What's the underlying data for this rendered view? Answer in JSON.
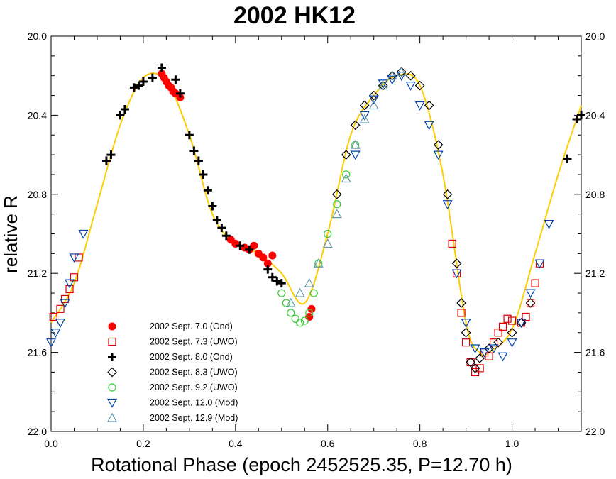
{
  "chart_data": {
    "type": "scatter",
    "title": "2002 HK12",
    "xlabel": "Rotational Phase (epoch 2452525.35, P=12.70 h)",
    "ylabel": "relative R",
    "xlim": [
      0.0,
      1.15
    ],
    "ylim": [
      20.0,
      22.0
    ],
    "y_inverted": true,
    "x_ticks": [
      "0.0",
      "0.2",
      "0.4",
      "0.6",
      "0.8",
      "1.0"
    ],
    "x_tick_values": [
      0.0,
      0.2,
      0.4,
      0.6,
      0.8,
      1.0
    ],
    "y_ticks": [
      "20.0",
      "20.4",
      "20.8",
      "21.2",
      "21.6",
      "22.0"
    ],
    "y_tick_values": [
      20.0,
      20.4,
      20.8,
      21.2,
      21.6,
      22.0
    ],
    "grid": false,
    "legend_position": "bottom-left",
    "fit_curve": {
      "color": "#ffcc00",
      "x": [
        0.0,
        0.05,
        0.1,
        0.15,
        0.2,
        0.25,
        0.3,
        0.35,
        0.4,
        0.45,
        0.5,
        0.55,
        0.6,
        0.65,
        0.7,
        0.75,
        0.8,
        0.85,
        0.9,
        0.93,
        0.95,
        1.0,
        1.05,
        1.1,
        1.15
      ],
      "y": [
        21.45,
        21.25,
        20.85,
        20.45,
        20.21,
        20.23,
        20.5,
        20.9,
        21.05,
        21.1,
        21.2,
        21.35,
        21.0,
        20.5,
        20.3,
        20.2,
        20.25,
        20.7,
        21.45,
        21.6,
        21.6,
        21.48,
        21.1,
        20.7,
        20.35
      ]
    },
    "series": [
      {
        "name": "2002 Sept. 7.0 (Ond)",
        "marker": "filled-circle",
        "color": "#ff0000",
        "points": [
          [
            0.24,
            20.19
          ],
          [
            0.245,
            20.21
          ],
          [
            0.25,
            20.23
          ],
          [
            0.255,
            20.25
          ],
          [
            0.26,
            20.26
          ],
          [
            0.265,
            20.28
          ],
          [
            0.27,
            20.29
          ],
          [
            0.28,
            20.31
          ],
          [
            0.39,
            21.03
          ],
          [
            0.4,
            21.05
          ],
          [
            0.42,
            21.07
          ],
          [
            0.43,
            21.08
          ],
          [
            0.44,
            21.06
          ],
          [
            0.45,
            21.1
          ],
          [
            0.46,
            21.12
          ],
          [
            0.47,
            21.15
          ],
          [
            0.48,
            21.11
          ],
          [
            0.56,
            21.42
          ],
          [
            0.565,
            21.38
          ]
        ]
      },
      {
        "name": "2002 Sept. 7.3 (UWO)",
        "marker": "open-square",
        "color": "#dd0000",
        "points": [
          [
            0.005,
            21.42
          ],
          [
            0.02,
            21.38
          ],
          [
            0.03,
            21.33
          ],
          [
            0.04,
            21.28
          ],
          [
            0.05,
            21.22
          ],
          [
            0.06,
            21.12
          ],
          [
            0.87,
            21.05
          ],
          [
            0.88,
            21.2
          ],
          [
            0.89,
            21.4
          ],
          [
            0.9,
            21.55
          ],
          [
            0.91,
            21.65
          ],
          [
            0.92,
            21.7
          ],
          [
            0.93,
            21.68
          ],
          [
            0.94,
            21.6
          ],
          [
            0.95,
            21.62
          ],
          [
            0.96,
            21.55
          ],
          [
            0.97,
            21.5
          ],
          [
            0.98,
            21.47
          ],
          [
            0.99,
            21.43
          ],
          [
            1.0,
            21.44
          ],
          [
            1.02,
            21.45
          ],
          [
            1.03,
            21.42
          ],
          [
            1.04,
            21.35
          ],
          [
            1.05,
            21.25
          ],
          [
            1.06,
            21.15
          ]
        ]
      },
      {
        "name": "2002 Sept. 8.0 (Ond)",
        "marker": "plus",
        "color": "#000000",
        "points": [
          [
            0.12,
            20.63
          ],
          [
            0.13,
            20.6
          ],
          [
            0.15,
            20.4
          ],
          [
            0.16,
            20.37
          ],
          [
            0.18,
            20.26
          ],
          [
            0.19,
            20.25
          ],
          [
            0.2,
            20.23
          ],
          [
            0.22,
            20.21
          ],
          [
            0.24,
            20.16
          ],
          [
            0.27,
            20.22
          ],
          [
            0.28,
            20.29
          ],
          [
            0.3,
            20.5
          ],
          [
            0.31,
            20.58
          ],
          [
            0.32,
            20.63
          ],
          [
            0.33,
            20.7
          ],
          [
            0.34,
            20.78
          ],
          [
            0.35,
            20.86
          ],
          [
            0.36,
            20.93
          ],
          [
            0.37,
            20.97
          ],
          [
            0.38,
            21.01
          ],
          [
            0.41,
            21.06
          ],
          [
            0.43,
            21.08
          ],
          [
            0.47,
            21.18
          ],
          [
            0.48,
            21.22
          ],
          [
            0.49,
            21.24
          ],
          [
            0.5,
            21.25
          ],
          [
            1.12,
            20.62
          ],
          [
            1.14,
            20.42
          ],
          [
            1.15,
            20.4
          ]
        ]
      },
      {
        "name": "2002 Sept. 8.3 (UWO)",
        "marker": "open-diamond",
        "color": "#000000",
        "points": [
          [
            0.62,
            20.8
          ],
          [
            0.64,
            20.6
          ],
          [
            0.66,
            20.45
          ],
          [
            0.68,
            20.35
          ],
          [
            0.7,
            20.3
          ],
          [
            0.72,
            20.25
          ],
          [
            0.74,
            20.2
          ],
          [
            0.76,
            20.18
          ],
          [
            0.78,
            20.2
          ],
          [
            0.8,
            20.25
          ],
          [
            0.82,
            20.35
          ],
          [
            0.84,
            20.55
          ],
          [
            0.86,
            20.8
          ],
          [
            0.88,
            21.15
          ],
          [
            0.89,
            21.35
          ],
          [
            0.9,
            21.5
          ],
          [
            0.91,
            21.65
          ],
          [
            0.92,
            21.68
          ],
          [
            0.93,
            21.63
          ],
          [
            0.95,
            21.58
          ],
          [
            0.97,
            21.55
          ],
          [
            1.0,
            21.5
          ],
          [
            1.02,
            21.45
          ],
          [
            1.04,
            21.35
          ]
        ]
      },
      {
        "name": "2002 Sept. 9.2 (UWO)",
        "marker": "open-circle",
        "color": "#33cc33",
        "points": [
          [
            0.5,
            21.3
          ],
          [
            0.51,
            21.35
          ],
          [
            0.52,
            21.4
          ],
          [
            0.53,
            21.43
          ],
          [
            0.54,
            21.45
          ],
          [
            0.55,
            21.44
          ],
          [
            0.56,
            21.4
          ],
          [
            0.57,
            21.3
          ],
          [
            0.58,
            21.15
          ],
          [
            0.6,
            21.0
          ],
          [
            0.62,
            20.85
          ],
          [
            0.64,
            20.7
          ],
          [
            0.66,
            20.55
          ]
        ]
      },
      {
        "name": "2002 Sept. 12.0 (Mod)",
        "marker": "open-triangle-down",
        "color": "#0044aa",
        "points": [
          [
            0.0,
            21.55
          ],
          [
            0.01,
            21.5
          ],
          [
            0.02,
            21.45
          ],
          [
            0.03,
            21.35
          ],
          [
            0.04,
            21.25
          ],
          [
            0.05,
            21.12
          ],
          [
            0.07,
            21.0
          ],
          [
            0.66,
            20.6
          ],
          [
            0.68,
            20.4
          ],
          [
            0.7,
            20.32
          ],
          [
            0.72,
            20.24
          ],
          [
            0.74,
            20.22
          ],
          [
            0.76,
            20.2
          ],
          [
            0.78,
            20.25
          ],
          [
            0.8,
            20.35
          ],
          [
            0.82,
            20.45
          ],
          [
            0.84,
            20.6
          ],
          [
            0.86,
            20.85
          ],
          [
            0.88,
            21.2
          ],
          [
            0.9,
            21.45
          ],
          [
            0.92,
            21.58
          ],
          [
            0.94,
            21.6
          ],
          [
            0.96,
            21.58
          ],
          [
            0.98,
            21.62
          ],
          [
            1.0,
            21.55
          ],
          [
            1.02,
            21.45
          ],
          [
            1.04,
            21.3
          ],
          [
            1.06,
            21.15
          ],
          [
            1.08,
            20.95
          ]
        ]
      },
      {
        "name": "2002 Sept. 12.9 (Mod)",
        "marker": "open-triangle-up",
        "color": "#6699aa",
        "points": [
          [
            0.52,
            21.35
          ],
          [
            0.54,
            21.3
          ],
          [
            0.56,
            21.25
          ],
          [
            0.58,
            21.15
          ],
          [
            0.6,
            21.05
          ],
          [
            0.62,
            20.9
          ],
          [
            0.64,
            20.72
          ],
          [
            0.66,
            20.55
          ],
          [
            0.68,
            20.42
          ],
          [
            0.7,
            20.35
          ],
          [
            0.72,
            20.25
          ],
          [
            0.74,
            20.2
          ],
          [
            0.76,
            20.18
          ]
        ]
      }
    ]
  }
}
